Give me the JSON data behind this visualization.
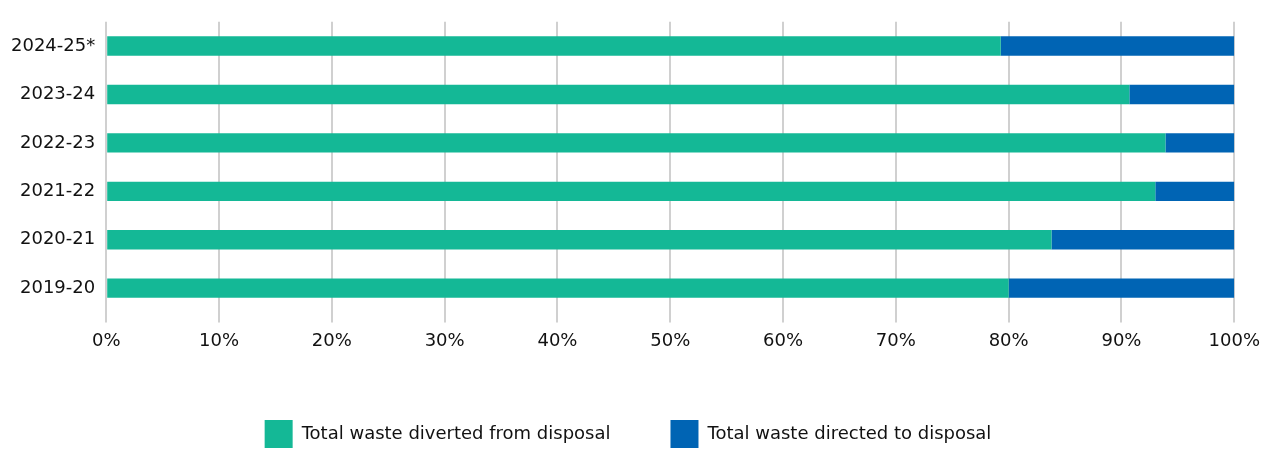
{
  "chart_data": {
    "type": "bar",
    "orientation": "horizontal",
    "stacked": true,
    "categories": [
      "2024-25*",
      "2023-24",
      "2022-23",
      "2021-22",
      "2020-21",
      "2019-20"
    ],
    "series": [
      {
        "name": "Total waste diverted from disposal",
        "color": "#14b896",
        "values": [
          79.3,
          90.7,
          93.9,
          93.0,
          83.8,
          80.0
        ]
      },
      {
        "name": "Total waste directed to disposal",
        "color": "#0064b4",
        "values": [
          20.7,
          9.3,
          6.1,
          7.0,
          16.2,
          20.0
        ]
      }
    ],
    "xlim": [
      0,
      100
    ],
    "xticks": [
      {
        "value": 0,
        "label": "0%"
      },
      {
        "value": 10,
        "label": "10%"
      },
      {
        "value": 20,
        "label": "20%"
      },
      {
        "value": 30,
        "label": "30%"
      },
      {
        "value": 40,
        "label": "40%"
      },
      {
        "value": 50,
        "label": "50%"
      },
      {
        "value": 60,
        "label": "60%"
      },
      {
        "value": 70,
        "label": "70%"
      },
      {
        "value": 80,
        "label": "80%"
      },
      {
        "value": 90,
        "label": "90%"
      },
      {
        "value": 100,
        "label": "100%"
      }
    ],
    "grid": "x",
    "legend": "bottom"
  }
}
